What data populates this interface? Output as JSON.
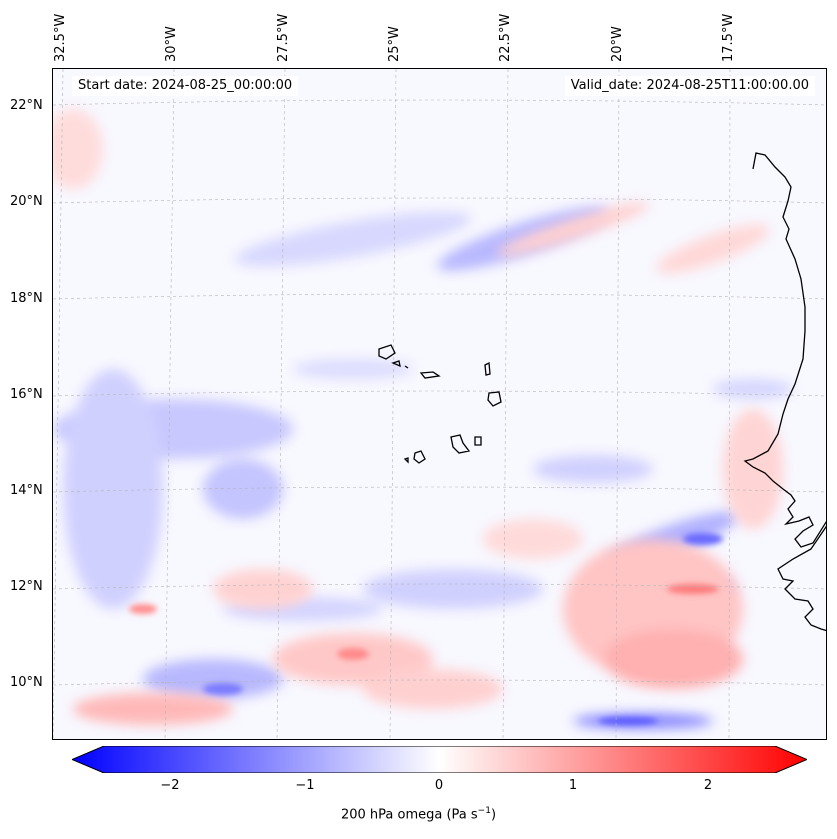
{
  "header": {
    "start_date": "Start date: 2024-08-25_00:00:00",
    "valid_date": "Valid_date: 2024-08-25T11:00:00.00"
  },
  "map": {
    "longitude_labels": [
      "32.5°W",
      "30°W",
      "27.5°W",
      "25°W",
      "22.5°W",
      "20°W",
      "17.5°W"
    ],
    "latitude_labels": [
      "22°N",
      "20°N",
      "18°N",
      "16°N",
      "14°N",
      "12°N",
      "10°N"
    ],
    "gridlines": true,
    "field": "200 hPa omega",
    "features": [
      "West African coastline",
      "Cape Verde islands"
    ]
  },
  "colorbar": {
    "ticks": [
      "−2",
      "−1",
      "0",
      "1",
      "2"
    ],
    "label_prefix": "200 hPa omega (Pa s",
    "label_exponent": "−1",
    "label_suffix": ")",
    "range": [
      -2.6,
      2.6
    ],
    "colors": {
      "negative": "#0000ff",
      "zero": "#ffffff",
      "positive": "#ff0000"
    }
  }
}
